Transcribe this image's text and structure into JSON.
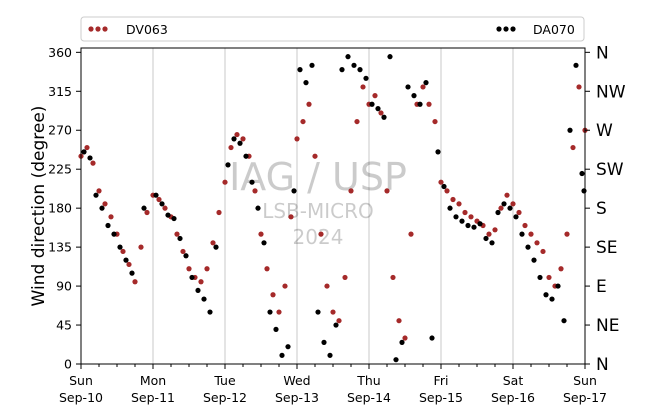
{
  "chart_data": {
    "type": "scatter",
    "ylabel": "Wind direction (degree)",
    "xlabel": "",
    "ylim": [
      0,
      365
    ],
    "xlim": [
      "2023-09-10 00:00",
      "2023-09-17 00:00"
    ],
    "y_ticks": [
      0,
      45,
      90,
      135,
      180,
      225,
      270,
      315,
      360
    ],
    "x_ticks": [
      {
        "day": "Sun",
        "date": "Sep-10"
      },
      {
        "day": "Mon",
        "date": "Sep-11"
      },
      {
        "day": "Tue",
        "date": "Sep-12"
      },
      {
        "day": "Wed",
        "date": "Sep-13"
      },
      {
        "day": "Thu",
        "date": "Sep-14"
      },
      {
        "day": "Fri",
        "date": "Sep-15"
      },
      {
        "day": "Sat",
        "date": "Sep-16"
      },
      {
        "day": "Sun",
        "date": "Sep-17"
      }
    ],
    "compass_labels": [
      "N",
      "NE",
      "E",
      "SE",
      "S",
      "SW",
      "W",
      "NW",
      "N"
    ],
    "grid": "vertical lines at day boundaries",
    "legend_placement": "top, outside plot",
    "series": [
      {
        "name": "DV063",
        "color": "#a52a2a",
        "points": [
          [
            "2023-09-10 00:00",
            240
          ],
          [
            "2023-09-10 02:00",
            250
          ],
          [
            "2023-09-10 04:00",
            232
          ],
          [
            "2023-09-10 06:00",
            200
          ],
          [
            "2023-09-10 08:00",
            185
          ],
          [
            "2023-09-10 10:00",
            170
          ],
          [
            "2023-09-10 12:00",
            150
          ],
          [
            "2023-09-10 14:00",
            130
          ],
          [
            "2023-09-10 16:00",
            115
          ],
          [
            "2023-09-10 18:00",
            95
          ],
          [
            "2023-09-10 20:00",
            135
          ],
          [
            "2023-09-10 22:00",
            175
          ],
          [
            "2023-09-11 00:00",
            195
          ],
          [
            "2023-09-11 02:00",
            190
          ],
          [
            "2023-09-11 04:00",
            180
          ],
          [
            "2023-09-11 06:00",
            170
          ],
          [
            "2023-09-11 08:00",
            150
          ],
          [
            "2023-09-11 10:00",
            130
          ],
          [
            "2023-09-11 12:00",
            110
          ],
          [
            "2023-09-11 14:00",
            100
          ],
          [
            "2023-09-11 16:00",
            95
          ],
          [
            "2023-09-11 18:00",
            110
          ],
          [
            "2023-09-11 20:00",
            140
          ],
          [
            "2023-09-11 22:00",
            175
          ],
          [
            "2023-09-12 00:00",
            210
          ],
          [
            "2023-09-12 02:00",
            250
          ],
          [
            "2023-09-12 04:00",
            265
          ],
          [
            "2023-09-12 06:00",
            260
          ],
          [
            "2023-09-12 08:00",
            240
          ],
          [
            "2023-09-12 10:00",
            200
          ],
          [
            "2023-09-12 12:00",
            150
          ],
          [
            "2023-09-12 14:00",
            110
          ],
          [
            "2023-09-12 16:00",
            80
          ],
          [
            "2023-09-12 18:00",
            60
          ],
          [
            "2023-09-12 20:00",
            90
          ],
          [
            "2023-09-12 22:00",
            170
          ],
          [
            "2023-09-13 00:00",
            260
          ],
          [
            "2023-09-13 02:00",
            280
          ],
          [
            "2023-09-13 04:00",
            300
          ],
          [
            "2023-09-13 06:00",
            240
          ],
          [
            "2023-09-13 08:00",
            150
          ],
          [
            "2023-09-13 10:00",
            90
          ],
          [
            "2023-09-13 12:00",
            60
          ],
          [
            "2023-09-13 14:00",
            50
          ],
          [
            "2023-09-13 16:00",
            100
          ],
          [
            "2023-09-13 18:00",
            200
          ],
          [
            "2023-09-13 20:00",
            280
          ],
          [
            "2023-09-13 22:00",
            320
          ],
          [
            "2023-09-14 00:00",
            300
          ],
          [
            "2023-09-14 02:00",
            310
          ],
          [
            "2023-09-14 04:00",
            290
          ],
          [
            "2023-09-14 06:00",
            200
          ],
          [
            "2023-09-14 08:00",
            100
          ],
          [
            "2023-09-14 10:00",
            50
          ],
          [
            "2023-09-14 12:00",
            30
          ],
          [
            "2023-09-14 14:00",
            150
          ],
          [
            "2023-09-14 16:00",
            300
          ],
          [
            "2023-09-14 18:00",
            320
          ],
          [
            "2023-09-14 20:00",
            300
          ],
          [
            "2023-09-14 22:00",
            280
          ],
          [
            "2023-09-15 00:00",
            210
          ],
          [
            "2023-09-15 02:00",
            200
          ],
          [
            "2023-09-15 04:00",
            190
          ],
          [
            "2023-09-15 06:00",
            185
          ],
          [
            "2023-09-15 08:00",
            175
          ],
          [
            "2023-09-15 10:00",
            170
          ],
          [
            "2023-09-15 12:00",
            165
          ],
          [
            "2023-09-15 14:00",
            160
          ],
          [
            "2023-09-15 16:00",
            150
          ],
          [
            "2023-09-15 18:00",
            155
          ],
          [
            "2023-09-15 20:00",
            180
          ],
          [
            "2023-09-15 22:00",
            195
          ],
          [
            "2023-09-16 00:00",
            185
          ],
          [
            "2023-09-16 02:00",
            175
          ],
          [
            "2023-09-16 04:00",
            160
          ],
          [
            "2023-09-16 06:00",
            150
          ],
          [
            "2023-09-16 08:00",
            140
          ],
          [
            "2023-09-16 10:00",
            130
          ],
          [
            "2023-09-16 12:00",
            100
          ],
          [
            "2023-09-16 14:00",
            90
          ],
          [
            "2023-09-16 16:00",
            110
          ],
          [
            "2023-09-16 18:00",
            150
          ],
          [
            "2023-09-16 20:00",
            250
          ],
          [
            "2023-09-16 22:00",
            320
          ],
          [
            "2023-09-17 00:00",
            270
          ]
        ]
      },
      {
        "name": "DA070",
        "color": "#000000",
        "points": [
          [
            "2023-09-10 01:00",
            245
          ],
          [
            "2023-09-10 03:00",
            238
          ],
          [
            "2023-09-10 05:00",
            195
          ],
          [
            "2023-09-10 07:00",
            180
          ],
          [
            "2023-09-10 09:00",
            160
          ],
          [
            "2023-09-10 11:00",
            150
          ],
          [
            "2023-09-10 13:00",
            135
          ],
          [
            "2023-09-10 15:00",
            120
          ],
          [
            "2023-09-10 17:00",
            105
          ],
          [
            "2023-09-10 21:00",
            180
          ],
          [
            "2023-09-11 01:00",
            195
          ],
          [
            "2023-09-11 03:00",
            185
          ],
          [
            "2023-09-11 05:00",
            172
          ],
          [
            "2023-09-11 07:00",
            168
          ],
          [
            "2023-09-11 09:00",
            145
          ],
          [
            "2023-09-11 11:00",
            125
          ],
          [
            "2023-09-11 13:00",
            100
          ],
          [
            "2023-09-11 15:00",
            85
          ],
          [
            "2023-09-11 17:00",
            75
          ],
          [
            "2023-09-11 19:00",
            60
          ],
          [
            "2023-09-11 21:00",
            135
          ],
          [
            "2023-09-12 01:00",
            230
          ],
          [
            "2023-09-12 03:00",
            260
          ],
          [
            "2023-09-12 05:00",
            255
          ],
          [
            "2023-09-12 07:00",
            240
          ],
          [
            "2023-09-12 09:00",
            210
          ],
          [
            "2023-09-12 11:00",
            180
          ],
          [
            "2023-09-12 13:00",
            140
          ],
          [
            "2023-09-12 15:00",
            60
          ],
          [
            "2023-09-12 17:00",
            40
          ],
          [
            "2023-09-12 19:00",
            10
          ],
          [
            "2023-09-12 21:00",
            20
          ],
          [
            "2023-09-12 23:00",
            200
          ],
          [
            "2023-09-13 01:00",
            340
          ],
          [
            "2023-09-13 03:00",
            325
          ],
          [
            "2023-09-13 05:00",
            345
          ],
          [
            "2023-09-13 07:00",
            60
          ],
          [
            "2023-09-13 09:00",
            25
          ],
          [
            "2023-09-13 11:00",
            10
          ],
          [
            "2023-09-13 13:00",
            45
          ],
          [
            "2023-09-13 15:00",
            340
          ],
          [
            "2023-09-13 17:00",
            355
          ],
          [
            "2023-09-13 19:00",
            345
          ],
          [
            "2023-09-13 21:00",
            340
          ],
          [
            "2023-09-13 23:00",
            330
          ],
          [
            "2023-09-14 01:00",
            300
          ],
          [
            "2023-09-14 03:00",
            295
          ],
          [
            "2023-09-14 05:00",
            285
          ],
          [
            "2023-09-14 07:00",
            355
          ],
          [
            "2023-09-14 09:00",
            5
          ],
          [
            "2023-09-14 11:00",
            25
          ],
          [
            "2023-09-14 13:00",
            320
          ],
          [
            "2023-09-14 15:00",
            310
          ],
          [
            "2023-09-14 17:00",
            300
          ],
          [
            "2023-09-14 19:00",
            325
          ],
          [
            "2023-09-14 21:00",
            30
          ],
          [
            "2023-09-14 23:00",
            245
          ],
          [
            "2023-09-15 01:00",
            205
          ],
          [
            "2023-09-15 03:00",
            180
          ],
          [
            "2023-09-15 05:00",
            170
          ],
          [
            "2023-09-15 07:00",
            165
          ],
          [
            "2023-09-15 09:00",
            160
          ],
          [
            "2023-09-15 11:00",
            158
          ],
          [
            "2023-09-15 13:00",
            162
          ],
          [
            "2023-09-15 15:00",
            145
          ],
          [
            "2023-09-15 17:00",
            140
          ],
          [
            "2023-09-15 19:00",
            175
          ],
          [
            "2023-09-15 21:00",
            185
          ],
          [
            "2023-09-15 23:00",
            180
          ],
          [
            "2023-09-16 01:00",
            170
          ],
          [
            "2023-09-16 03:00",
            150
          ],
          [
            "2023-09-16 05:00",
            135
          ],
          [
            "2023-09-16 07:00",
            120
          ],
          [
            "2023-09-16 09:00",
            100
          ],
          [
            "2023-09-16 11:00",
            80
          ],
          [
            "2023-09-16 13:00",
            75
          ],
          [
            "2023-09-16 15:00",
            90
          ],
          [
            "2023-09-16 17:00",
            50
          ],
          [
            "2023-09-16 19:00",
            270
          ],
          [
            "2023-09-16 21:00",
            345
          ],
          [
            "2023-09-16 23:00",
            220
          ],
          [
            "2023-09-16 23:40",
            200
          ]
        ]
      }
    ]
  },
  "watermark": {
    "line1": "IAG / USP",
    "line2": "LSB-MICRO",
    "line3": "2024"
  }
}
